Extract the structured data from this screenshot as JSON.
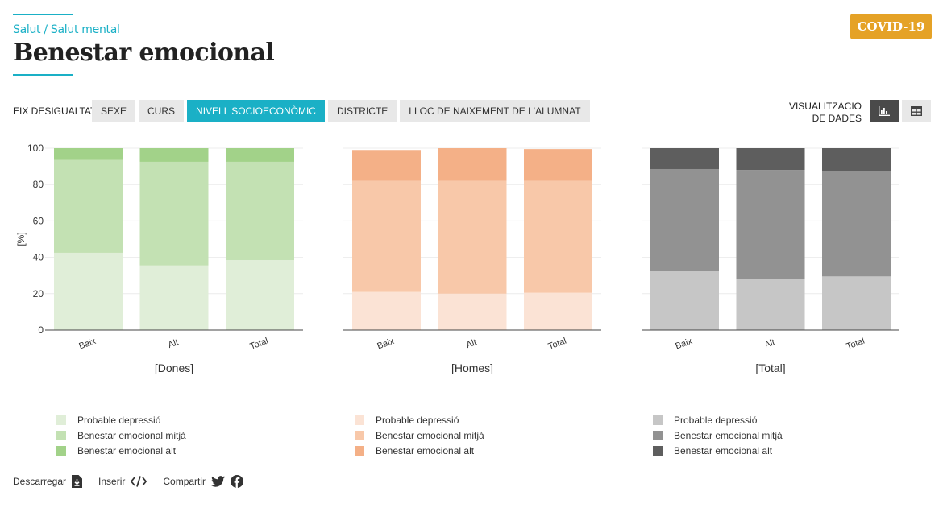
{
  "header": {
    "breadcrumb": "Salut / Salut mental",
    "title": "Benestar emocional",
    "badge": "COVID-19"
  },
  "controls": {
    "axis_label": "EIX DESIGUALTAT",
    "tabs": [
      {
        "label": "SEXE",
        "active": false
      },
      {
        "label": "CURS",
        "active": false
      },
      {
        "label": "NIVELL SOCIOECONÒMIC",
        "active": true
      },
      {
        "label": "DISTRICTE",
        "active": false
      },
      {
        "label": "LLOC DE NAIXEMENT DE L'ALUMNAT",
        "active": false
      }
    ],
    "viz_label_line1": "VISUALITZACIO",
    "viz_label_line2": "DE DADES",
    "viz_modes": [
      {
        "icon": "bar-chart-icon",
        "active": true
      },
      {
        "icon": "table-icon",
        "active": false
      }
    ]
  },
  "colors": {
    "accent": "#1ab0c6",
    "badge": "#e5a226"
  },
  "chart_data": [
    {
      "type": "bar",
      "stacked": true,
      "title": "",
      "xlabel": "[Dones]",
      "ylabel": "[%]",
      "ylim": [
        0,
        100
      ],
      "yticks": [
        0,
        20,
        40,
        60,
        80,
        100
      ],
      "categories": [
        "Baix",
        "Alt",
        "Total"
      ],
      "series": [
        {
          "name": "Probable depressió",
          "values": [
            42.5,
            35.5,
            38.5
          ],
          "color": "#e0eed8"
        },
        {
          "name": "Benestar emocional mitjà",
          "values": [
            51.0,
            57.0,
            54.0
          ],
          "color": "#c3e1b3"
        },
        {
          "name": "Benestar emocional alt",
          "values": [
            6.5,
            7.5,
            7.5
          ],
          "color": "#a2d289"
        }
      ]
    },
    {
      "type": "bar",
      "stacked": true,
      "title": "",
      "xlabel": "[Homes]",
      "ylabel": "",
      "ylim": [
        0,
        100
      ],
      "yticks": [
        0,
        20,
        40,
        60,
        80,
        100
      ],
      "categories": [
        "Baix",
        "Alt",
        "Total"
      ],
      "series": [
        {
          "name": "Probable depressió",
          "values": [
            21.0,
            20.0,
            20.5
          ],
          "color": "#fbe3d5"
        },
        {
          "name": "Benestar emocional mitjà",
          "values": [
            61.0,
            62.0,
            61.5
          ],
          "color": "#f8c8a9"
        },
        {
          "name": "Benestar emocional alt",
          "values": [
            17.0,
            18.0,
            17.5
          ],
          "color": "#f4b087"
        }
      ]
    },
    {
      "type": "bar",
      "stacked": true,
      "title": "",
      "xlabel": "[Total]",
      "ylabel": "",
      "ylim": [
        0,
        100
      ],
      "yticks": [
        0,
        20,
        40,
        60,
        80,
        100
      ],
      "categories": [
        "Baix",
        "Alt",
        "Total"
      ],
      "series": [
        {
          "name": "Probable depressió",
          "values": [
            32.5,
            28.0,
            29.5
          ],
          "color": "#c6c6c6"
        },
        {
          "name": "Benestar emocional mitjà",
          "values": [
            56.0,
            60.0,
            58.0
          ],
          "color": "#929292"
        },
        {
          "name": "Benestar emocional alt",
          "values": [
            11.5,
            12.0,
            12.5
          ],
          "color": "#5e5e5e"
        }
      ]
    }
  ],
  "footer": {
    "download_label": "Descarregar",
    "embed_label": "Inserir",
    "share_label": "Compartir"
  }
}
